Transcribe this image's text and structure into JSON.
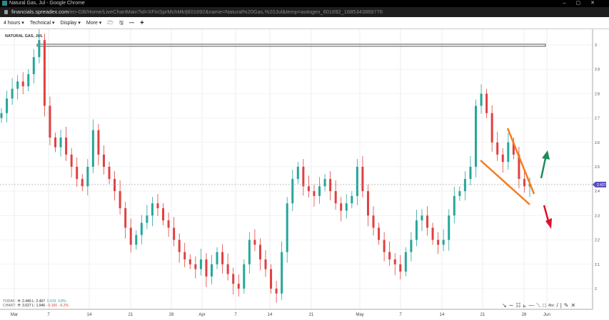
{
  "window": {
    "title": "Natural Gas, Jul - Google Chrome",
    "url_domain": "financials.spreadex.com",
    "url_path": "/en-GB/Home/LiveChartMain?id=XFinSprMchMkt|601692&name=Natural%20Gas,%20Jul&temp=autogen_601692_1685343869776"
  },
  "toolbar": {
    "interval": "4 hours ▾",
    "technical": "Technical ▾",
    "display": "Display ▾",
    "more": "More ▾",
    "icons": [
      "folder-open-icon",
      "save-icon",
      "zoom-out-icon",
      "zoom-in-icon"
    ]
  },
  "symbol": "NATURAL GAS, JUL",
  "stats": {
    "today_label": "TODAY:",
    "today_h": "H: 2.440",
    "today_l": "L: 2.407",
    "today_chg": "0.019",
    "today_pct": "0.8%",
    "chart_label": "CHART:",
    "chart_h": "H: 3.027",
    "chart_l": "L: 1.946",
    "chart_chg": "-0.160",
    "chart_pct": "-6.2%"
  },
  "drawing_tools": [
    "arrow-icon",
    "curve-icon",
    "fib-icon",
    "fan-icon",
    "horizontal-line-icon",
    "trend-line-icon",
    "rectangle-icon",
    "text-icon",
    "line-icon",
    "separator",
    "pencil-icon",
    "close-icon"
  ],
  "colors": {
    "up": "#26a69a",
    "down": "#e04040",
    "annotation_lines": "#f57c20",
    "arrow_up": "#1e8c5a",
    "arrow_down": "#e0102a",
    "price_tag": "#5b4fbf"
  },
  "chart_data": {
    "type": "candlestick",
    "price_axis": {
      "ticks": [
        "3",
        "2.9",
        "2.8",
        "2.7",
        "2.6",
        "2.5",
        "2.4",
        "2.3",
        "2.2",
        "2.1",
        "2"
      ],
      "range": [
        1.95,
        3.03
      ]
    },
    "time_axis": {
      "ticks": [
        "Mar",
        "7",
        "14",
        "21",
        "28",
        "Apr",
        "7",
        "14",
        "21",
        "May",
        "7",
        "14",
        "21",
        "28",
        "Jun"
      ]
    },
    "current_price": "2.427",
    "closes": [
      2.72,
      2.78,
      2.82,
      2.85,
      2.83,
      2.88,
      2.95,
      3.02,
      2.75,
      2.62,
      2.58,
      2.62,
      2.55,
      2.5,
      2.45,
      2.42,
      2.5,
      2.65,
      2.55,
      2.5,
      2.45,
      2.4,
      2.33,
      2.25,
      2.18,
      2.22,
      2.27,
      2.3,
      2.35,
      2.33,
      2.28,
      2.25,
      2.2,
      2.15,
      2.12,
      2.1,
      2.08,
      2.12,
      2.05,
      2.1,
      2.15,
      2.1,
      2.06,
      2.02,
      2.0,
      2.1,
      2.2,
      2.18,
      2.12,
      2.08,
      2.0,
      1.98,
      2.15,
      2.35,
      2.45,
      2.5,
      2.42,
      2.4,
      2.38,
      2.42,
      2.45,
      2.4,
      2.35,
      2.32,
      2.35,
      2.38,
      2.5,
      2.4,
      2.3,
      2.25,
      2.2,
      2.15,
      2.12,
      2.1,
      2.07,
      2.15,
      2.2,
      2.28,
      2.3,
      2.25,
      2.2,
      2.18,
      2.2,
      2.3,
      2.38,
      2.4,
      2.45,
      2.5,
      2.75,
      2.8,
      2.72,
      2.6,
      2.55,
      2.52,
      2.6,
      2.55,
      2.45,
      2.42,
      2.43
    ]
  }
}
